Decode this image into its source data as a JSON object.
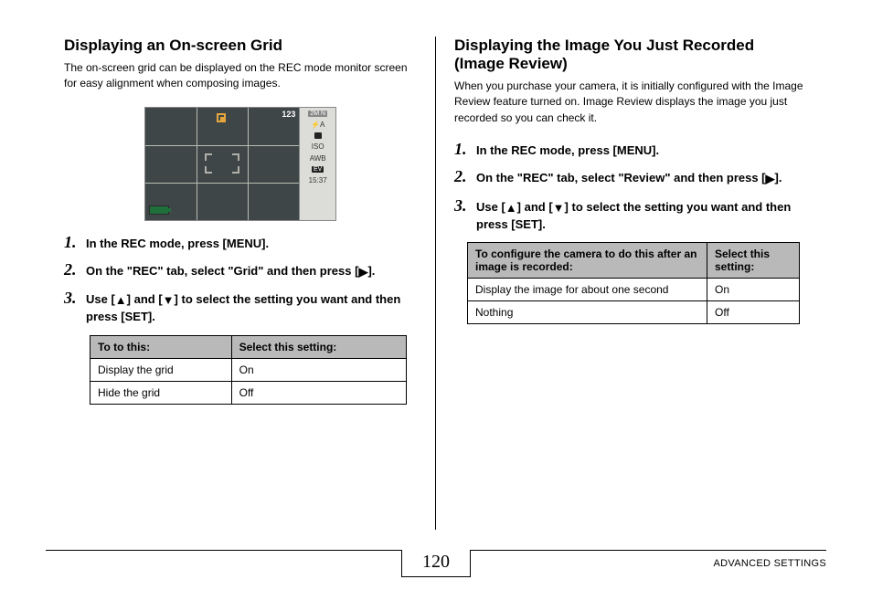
{
  "left": {
    "heading": "Displaying an On-screen Grid",
    "intro": "The on-screen grid can be displayed on the REC mode monitor screen for easy alignment when composing images.",
    "monitor": {
      "count": "123",
      "side": {
        "mode": "2M N",
        "flash": "⚡A",
        "iso": "ISO",
        "awb": "AWB",
        "ev": "EV",
        "time": "15:37"
      }
    },
    "steps": {
      "s1": "In the REC mode, press [MENU].",
      "s2_a": "On the \"REC\" tab, select \"Grid\" and then press [",
      "s2_b": "].",
      "s3_a": "Use [",
      "s3_b": "] and [",
      "s3_c": "] to select the setting you want and then press [SET]."
    },
    "table": {
      "h1": "To to this:",
      "h2": "Select this setting:",
      "r1c1": "Display the grid",
      "r1c2": "On",
      "r2c1": "Hide the grid",
      "r2c2": "Off"
    }
  },
  "right": {
    "heading": "Displaying the Image You Just Recorded (Image Review)",
    "intro": "When you purchase your camera, it is initially configured with the Image Review feature turned on. Image Review displays the image you just recorded so you can check it.",
    "steps": {
      "s1": "In the REC mode, press [MENU].",
      "s2_a": "On the \"REC\" tab, select \"Review\" and then press [",
      "s2_b": "].",
      "s3_a": "Use [",
      "s3_b": "] and [",
      "s3_c": "] to select the setting you want and then press [SET]."
    },
    "table": {
      "h1": "To configure the camera to do this after an image is recorded:",
      "h2": "Select this setting:",
      "r1c1": "Display the image for about one second",
      "r1c2": "On",
      "r2c1": "Nothing",
      "r2c2": "Off"
    }
  },
  "footer": {
    "page": "120",
    "section": "ADVANCED SETTINGS"
  },
  "glyphs": {
    "right": "▶",
    "up": "▲",
    "down": "▼"
  }
}
